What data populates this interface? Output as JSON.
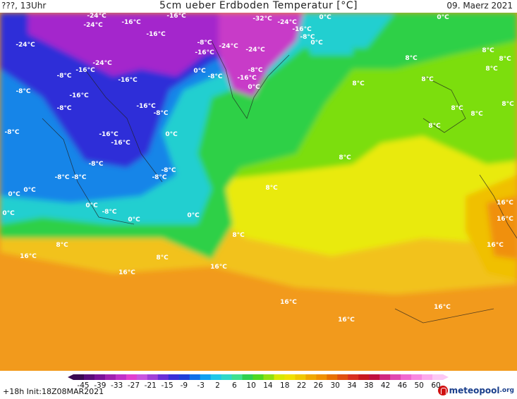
{
  "header": {
    "left": "???, 13Uhr",
    "title": "5cm ueber Erdboden Temperatur [°C]",
    "date": "09. Maerz 2021"
  },
  "colorbar": {
    "labels": [
      "-45",
      "-39",
      "-33",
      "-27",
      "-21",
      "-15",
      "-9",
      "-3",
      "2",
      "6",
      "10",
      "14",
      "18",
      "22",
      "26",
      "30",
      "34",
      "38",
      "42",
      "46",
      "50",
      "60"
    ],
    "colors": [
      "#3a0a52",
      "#5a0d7a",
      "#7a1298",
      "#a020b0",
      "#c030c8",
      "#e040d0",
      "#c855e0",
      "#a040d8",
      "#6a2fd8",
      "#3a2fd8",
      "#2040d8",
      "#1070e8",
      "#10a0f0",
      "#20c8e8",
      "#30d8c8",
      "#40e090",
      "#30d050",
      "#50d820",
      "#90e010",
      "#d8e800",
      "#f0e000",
      "#f0c800",
      "#f0a800",
      "#f09000",
      "#e87000",
      "#e05010",
      "#d83020",
      "#c81820",
      "#c01040",
      "#d02880",
      "#e048b0",
      "#f068d0",
      "#f888e0",
      "#fca8ec",
      "#fcc8f4"
    ]
  },
  "labels": {
    "minus24": "-24°C",
    "minus16": "-16°C",
    "minus32": "-32°C",
    "minus8": "-8°C",
    "zero": "0°C",
    "plus8": "8°C",
    "plus16": "16°C"
  },
  "footer": {
    "left": "+18h  Init:18Z08MAR2021",
    "logo_main": "meteopool",
    "logo_suffix": ".org"
  },
  "colors": {
    "orange": "#f29a1c",
    "yellow": "#e9ea0e",
    "green": "#7cde10",
    "dark_green": "#2ed046",
    "cyan": "#24cfd0",
    "blue": "#1585e8",
    "dark_blue": "#2f2fd8",
    "purple": "#a428cc"
  }
}
